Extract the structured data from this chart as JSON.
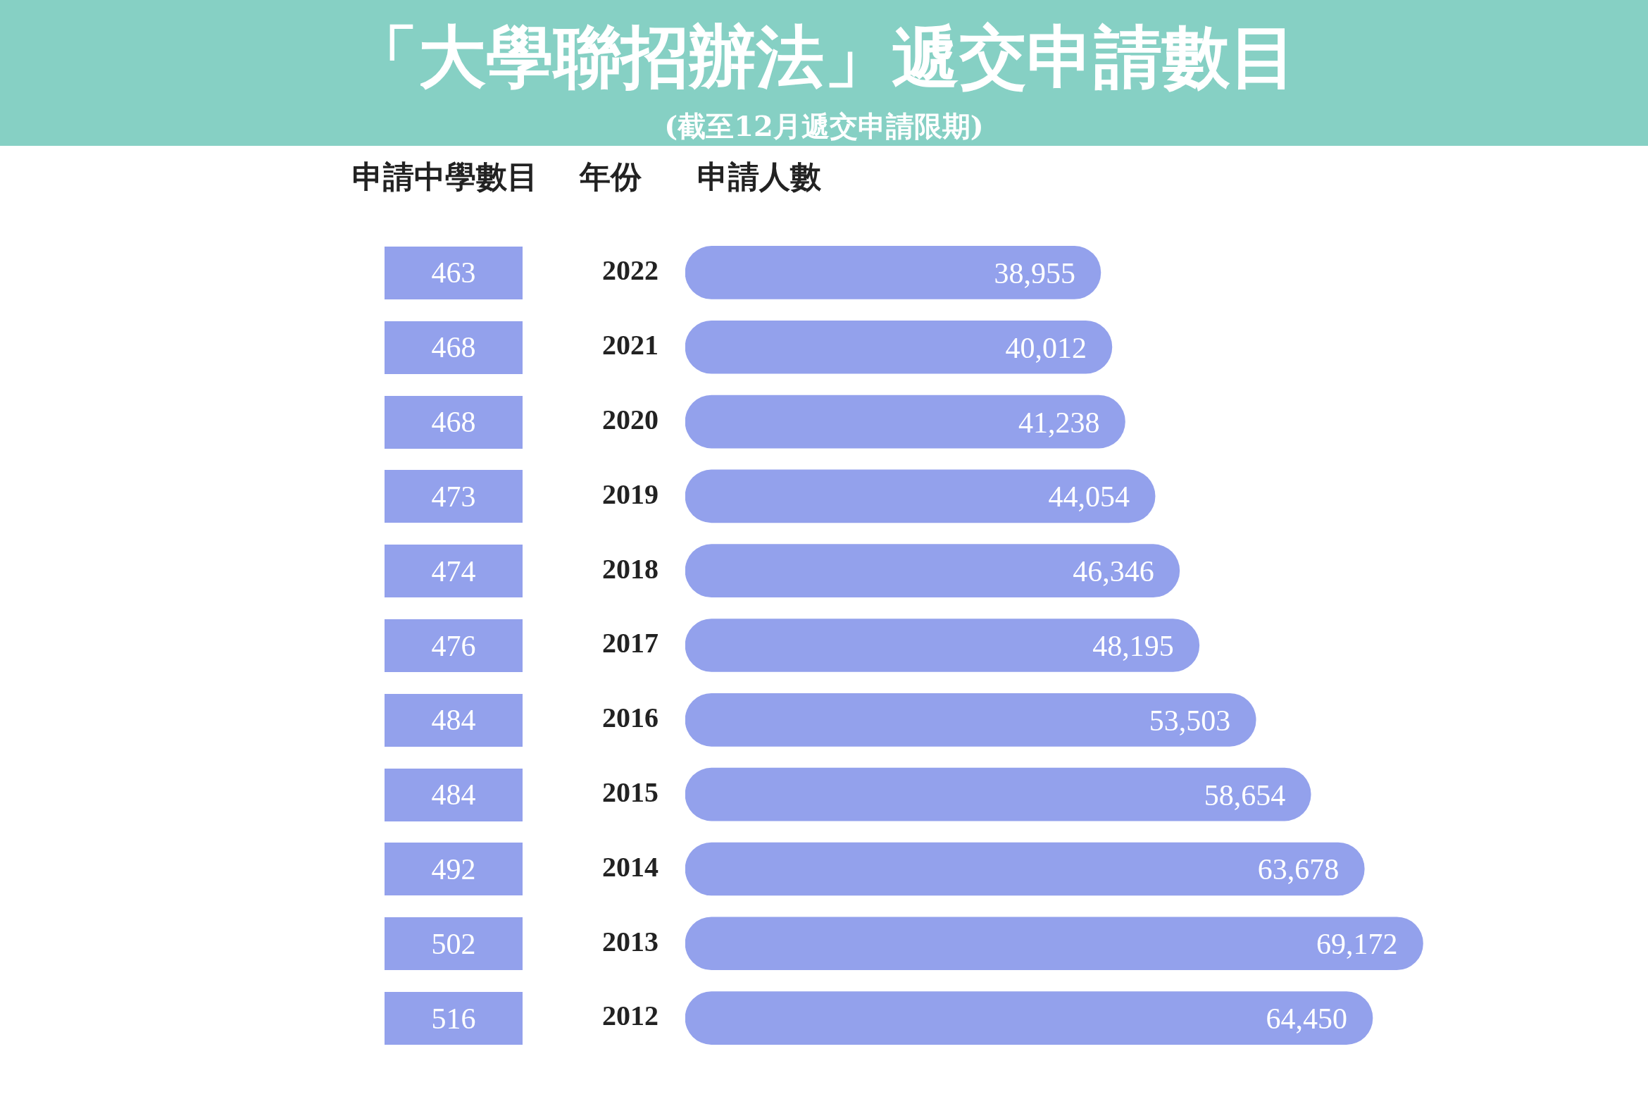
{
  "chart_data": [
    {
      "type": "other",
      "title": "「大學聯招辦法」遞交申請數目",
      "subtitle": "(截至12月遞交申請限期)",
      "xlabel": "申請中學數目",
      "color": "#93a1ec",
      "values": [
        463,
        468,
        468,
        473,
        474,
        476,
        484,
        484,
        492,
        502,
        516
      ],
      "data_labels": true
    },
    {
      "type": "bar",
      "orientation": "horizontal",
      "xlabel": "申請人數",
      "ylabel": "年份",
      "color": "#93a1ec",
      "tick_labels": "y",
      "grid": false,
      "legend": false,
      "categories": [
        "2022",
        "2021",
        "2020",
        "2019",
        "2018",
        "2017",
        "2016",
        "2015",
        "2014",
        "2013",
        "2012"
      ],
      "values": [
        38955,
        40012,
        41238,
        44054,
        46346,
        48195,
        53503,
        58654,
        63678,
        69172,
        64450
      ],
      "value_labels": [
        "38,955",
        "40,012",
        "41,238",
        "44,054",
        "46,346",
        "48,195",
        "53,503",
        "58,654",
        "63,678",
        "69,172",
        "64,450"
      ]
    }
  ]
}
